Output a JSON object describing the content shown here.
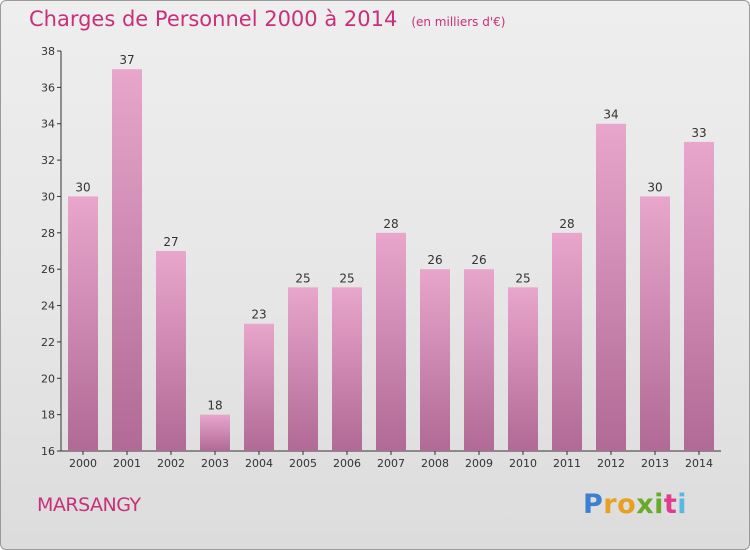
{
  "chart_data": {
    "type": "bar",
    "title": "Charges de Personnel 2000 à 2014",
    "subtitle": "(en milliers d'€)",
    "categories": [
      "2000",
      "2001",
      "2002",
      "2003",
      "2004",
      "2005",
      "2006",
      "2007",
      "2008",
      "2009",
      "2010",
      "2011",
      "2012",
      "2013",
      "2014"
    ],
    "values": [
      30,
      37,
      27,
      18,
      23,
      25,
      25,
      28,
      26,
      26,
      25,
      28,
      34,
      30,
      33
    ],
    "ylim": [
      16,
      38
    ],
    "yticks": [
      16,
      18,
      20,
      22,
      24,
      26,
      28,
      30,
      32,
      34,
      36,
      38
    ],
    "xlabel": "",
    "ylabel": "",
    "grid": false,
    "bar_color_top": "#e8a6cc",
    "bar_color_bottom": "#b06a95",
    "label_color": "#333333"
  },
  "commune": "MARSANGY",
  "logo": {
    "letters": [
      "P",
      "r",
      "o",
      "x",
      "i",
      "t",
      "i"
    ],
    "colors": [
      "#3d7fd1",
      "#e8a020",
      "#e8a020",
      "#6aaa2a",
      "#6aaa2a",
      "#e03b8e",
      "#5ab7e0"
    ]
  },
  "colors": {
    "title": "#c8307a",
    "axis": "#333333"
  }
}
